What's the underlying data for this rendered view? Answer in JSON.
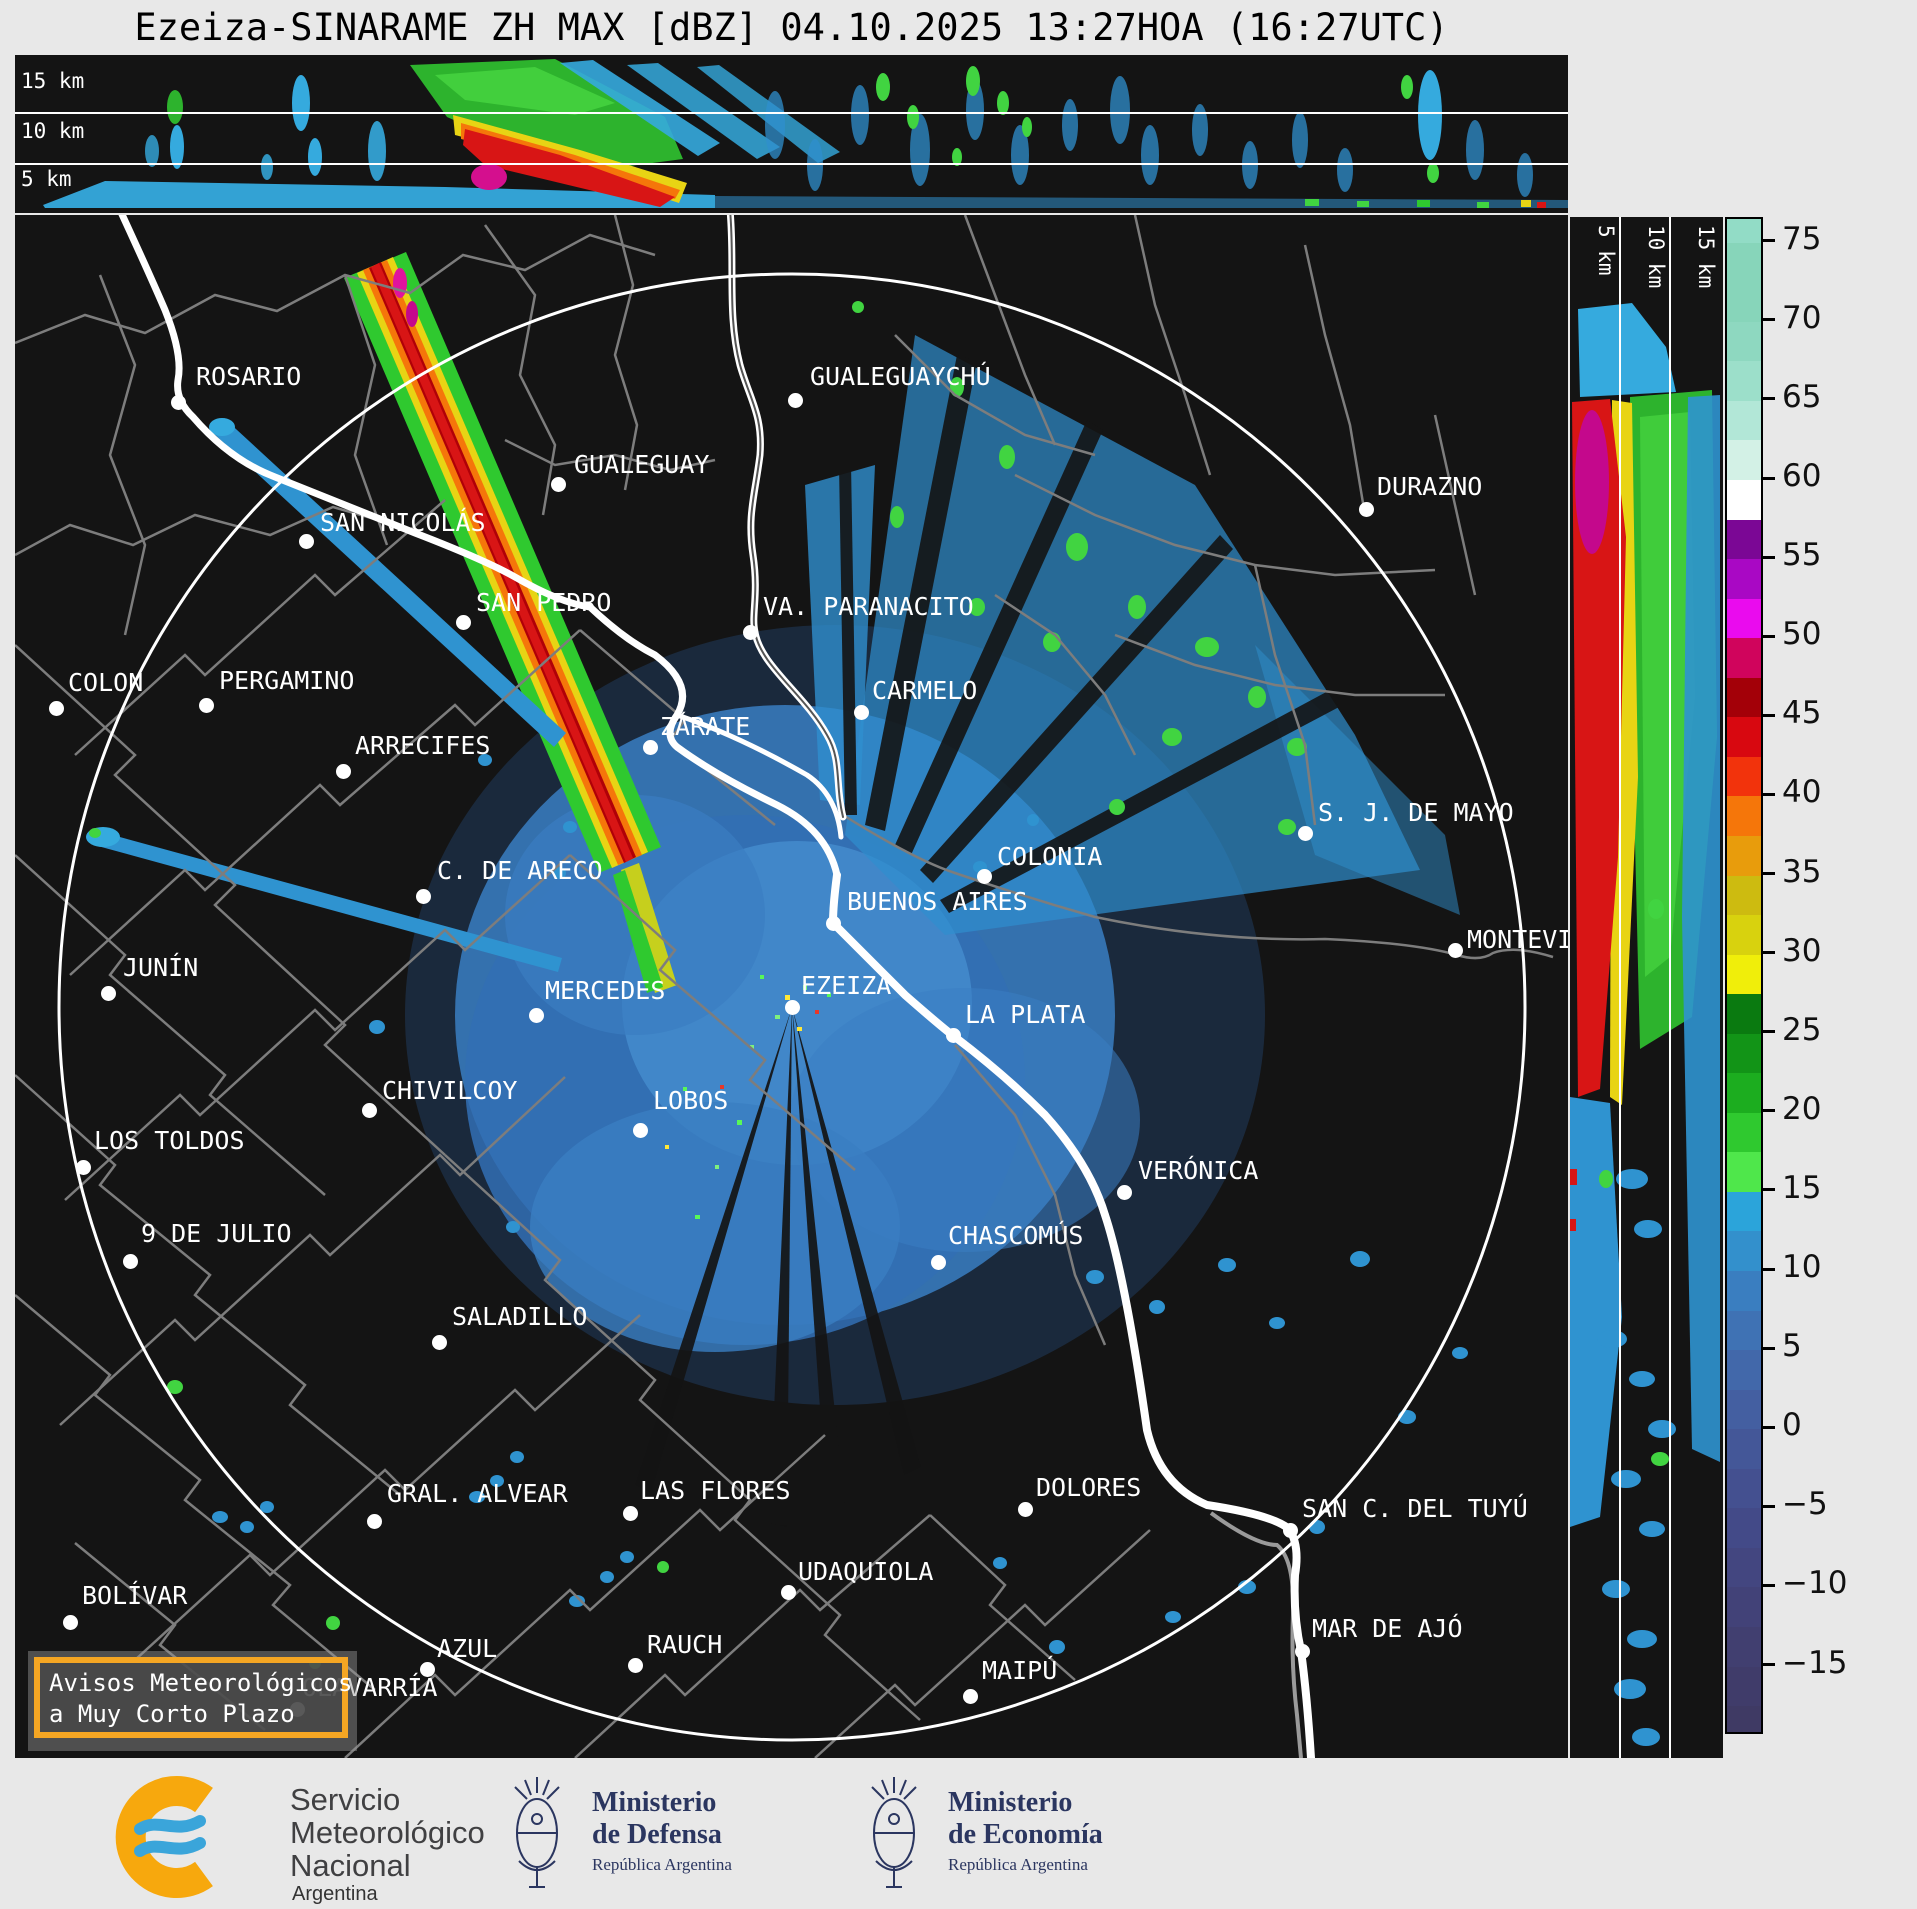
{
  "title": "Ezeiza-SINARAME ZH MAX [dBZ] 04.10.2025 13:27HOA (16:27UTC)",
  "top_panel": {
    "km_labels": [
      "15 km",
      "10 km",
      "5 km"
    ]
  },
  "right_panel": {
    "km_labels": [
      "5 km",
      "10 km",
      "15 km"
    ]
  },
  "colorbar": {
    "unit": "dBZ",
    "ticks": [
      75,
      70,
      65,
      60,
      55,
      50,
      45,
      40,
      35,
      30,
      25,
      20,
      15,
      10,
      5,
      0,
      -5,
      -10,
      -15
    ],
    "segments": [
      {
        "upper": 77.5,
        "color": "#92dcc6"
      },
      {
        "upper": 75.0,
        "color": "#87d5ba"
      },
      {
        "upper": 72.5,
        "color": "#87d5ba"
      },
      {
        "upper": 70.0,
        "color": "#8ed8c0"
      },
      {
        "upper": 67.5,
        "color": "#9cdfca"
      },
      {
        "upper": 65.0,
        "color": "#b2e7d7"
      },
      {
        "upper": 62.5,
        "color": "#d3f1e6"
      },
      {
        "upper": 60.0,
        "color": "#ffffff"
      },
      {
        "upper": 57.5,
        "color": "#7b0795"
      },
      {
        "upper": 55.0,
        "color": "#a908c4"
      },
      {
        "upper": 52.5,
        "color": "#ea0bee"
      },
      {
        "upper": 50.0,
        "color": "#d0045c"
      },
      {
        "upper": 47.5,
        "color": "#a30008"
      },
      {
        "upper": 45.0,
        "color": "#d80810"
      },
      {
        "upper": 42.5,
        "color": "#f2330c"
      },
      {
        "upper": 40.0,
        "color": "#f5760a"
      },
      {
        "upper": 37.5,
        "color": "#e89c0c"
      },
      {
        "upper": 35.0,
        "color": "#cdbb10"
      },
      {
        "upper": 32.5,
        "color": "#d8d20e"
      },
      {
        "upper": 30.0,
        "color": "#f0ee0a"
      },
      {
        "upper": 27.5,
        "color": "#0a7a10"
      },
      {
        "upper": 25.0,
        "color": "#129417"
      },
      {
        "upper": 22.5,
        "color": "#1cad1f"
      },
      {
        "upper": 20.0,
        "color": "#2fc92f"
      },
      {
        "upper": 17.5,
        "color": "#4fe74b"
      },
      {
        "upper": 15.0,
        "color": "#2ba4da"
      },
      {
        "upper": 12.5,
        "color": "#3390cc"
      },
      {
        "upper": 10.0,
        "color": "#3a7ec0"
      },
      {
        "upper": 7.5,
        "color": "#3f72b4"
      },
      {
        "upper": 5.0,
        "color": "#4268aa"
      },
      {
        "upper": 2.5,
        "color": "#445fa1"
      },
      {
        "upper": 0.0,
        "color": "#445798"
      },
      {
        "upper": -2.5,
        "color": "#445090"
      },
      {
        "upper": -5.0,
        "color": "#434a88"
      },
      {
        "upper": -7.5,
        "color": "#434680"
      },
      {
        "upper": -10.0,
        "color": "#424278"
      },
      {
        "upper": -12.5,
        "color": "#413f70"
      },
      {
        "upper": -15.0,
        "color": "#403c6a"
      },
      {
        "upper": -17.5,
        "color": "#3f3a64"
      }
    ]
  },
  "map": {
    "cities": [
      {
        "name": "ROSARIO",
        "dot": [
          178,
          402
        ],
        "label": [
          196,
          362
        ]
      },
      {
        "name": "SAN NICOLÁS",
        "dot": [
          306,
          541
        ],
        "label": [
          320,
          508
        ]
      },
      {
        "name": "SAN PEDRO",
        "dot": [
          463,
          622
        ],
        "label": [
          476,
          588
        ]
      },
      {
        "name": "GUALEGUAY",
        "dot": [
          558,
          484
        ],
        "label": [
          574,
          450
        ]
      },
      {
        "name": "GUALEGUAYCHÚ",
        "dot": [
          795,
          400
        ],
        "label": [
          810,
          362
        ]
      },
      {
        "name": "VA. PARANACITO",
        "dot": [
          750,
          632
        ],
        "label": [
          763,
          592
        ]
      },
      {
        "name": "DURAZNO",
        "dot": [
          1366,
          509
        ],
        "label": [
          1377,
          472
        ]
      },
      {
        "name": "COLON",
        "dot": [
          56,
          708
        ],
        "label": [
          68,
          668
        ]
      },
      {
        "name": "PERGAMINO",
        "dot": [
          206,
          705
        ],
        "label": [
          219,
          666
        ]
      },
      {
        "name": "ARRECIFES",
        "dot": [
          343,
          771
        ],
        "label": [
          355,
          731
        ]
      },
      {
        "name": "CARMELO",
        "dot": [
          861,
          712
        ],
        "label": [
          872,
          676
        ]
      },
      {
        "name": "ZÁRATE",
        "dot": [
          650,
          747
        ],
        "label": [
          660,
          712
        ]
      },
      {
        "name": "C. DE ARECO",
        "dot": [
          423,
          896
        ],
        "label": [
          437,
          856
        ]
      },
      {
        "name": "S. J. DE MAYO",
        "dot": [
          1305,
          833
        ],
        "label": [
          1318,
          798
        ]
      },
      {
        "name": "COLONIA",
        "dot": [
          984,
          876
        ],
        "label": [
          997,
          842
        ]
      },
      {
        "name": "JUNÍN",
        "dot": [
          108,
          993
        ],
        "label": [
          123,
          953
        ]
      },
      {
        "name": "MERCEDES",
        "dot": [
          536,
          1015
        ],
        "label": [
          545,
          976
        ]
      },
      {
        "name": "BUENOS AIRES",
        "dot": [
          833,
          923
        ],
        "label": [
          847,
          887
        ]
      },
      {
        "name": "EZEIZA",
        "dot": [
          792,
          1007
        ],
        "label": [
          801,
          971
        ]
      },
      {
        "name": "CHIVILCOY",
        "dot": [
          369,
          1110
        ],
        "label": [
          382,
          1076
        ]
      },
      {
        "name": "LA PLATA",
        "dot": [
          953,
          1035
        ],
        "label": [
          965,
          1000
        ]
      },
      {
        "name": "MONTEVIDEO",
        "dot": [
          1455,
          950
        ],
        "label": [
          1467,
          925
        ]
      },
      {
        "name": "LOS TOLDOS",
        "dot": [
          83,
          1167
        ],
        "label": [
          94,
          1126
        ]
      },
      {
        "name": "LOBOS",
        "dot": [
          640,
          1130
        ],
        "label": [
          653,
          1086
        ]
      },
      {
        "name": "VERÓNICA",
        "dot": [
          1124,
          1192
        ],
        "label": [
          1138,
          1156
        ]
      },
      {
        "name": "CHASCOMÚS",
        "dot": [
          938,
          1262
        ],
        "label": [
          948,
          1221
        ]
      },
      {
        "name": "9 DE JULIO",
        "dot": [
          130,
          1261
        ],
        "label": [
          141,
          1219
        ]
      },
      {
        "name": "SALADILLO",
        "dot": [
          439,
          1342
        ],
        "label": [
          452,
          1302
        ]
      },
      {
        "name": "GRAL. ALVEAR",
        "dot": [
          374,
          1521
        ],
        "label": [
          387,
          1479
        ]
      },
      {
        "name": "LAS FLORES",
        "dot": [
          630,
          1513
        ],
        "label": [
          640,
          1476
        ]
      },
      {
        "name": "BOLÍVAR",
        "dot": [
          70,
          1622
        ],
        "label": [
          82,
          1581
        ]
      },
      {
        "name": "DOLORES",
        "dot": [
          1025,
          1509
        ],
        "label": [
          1036,
          1473
        ]
      },
      {
        "name": "UDAQUIOLA",
        "dot": [
          788,
          1592
        ],
        "label": [
          798,
          1557
        ]
      },
      {
        "name": "SAN C. DEL TUYÚ",
        "dot": [
          1290,
          1530
        ],
        "label": [
          1302,
          1494
        ]
      },
      {
        "name": "MAR DE AJÓ",
        "dot": [
          1302,
          1651
        ],
        "label": [
          1312,
          1614
        ]
      },
      {
        "name": "MAIPÚ",
        "dot": [
          970,
          1696
        ],
        "label": [
          982,
          1656
        ]
      },
      {
        "name": "AZUL",
        "dot": [
          427,
          1669
        ],
        "label": [
          437,
          1634
        ]
      },
      {
        "name": "RAUCH",
        "dot": [
          635,
          1665
        ],
        "label": [
          647,
          1630
        ]
      },
      {
        "name": "OLAVARRÍA",
        "dot": [
          297,
          1709
        ],
        "label": [
          302,
          1673
        ]
      }
    ]
  },
  "warning_box": {
    "line1": "Avisos Meteorológicos",
    "line2": "a Muy Corto Plazo"
  },
  "footer": {
    "smn": {
      "line1": "Servicio",
      "line2": "Meteorológico",
      "line3": "Nacional",
      "line4": "Argentina"
    },
    "defensa": {
      "line1": "Ministerio",
      "line2": "de Defensa",
      "sub": "República Argentina"
    },
    "economia": {
      "line1": "Ministerio",
      "line2": "de Economía",
      "sub": "República Argentina"
    }
  }
}
